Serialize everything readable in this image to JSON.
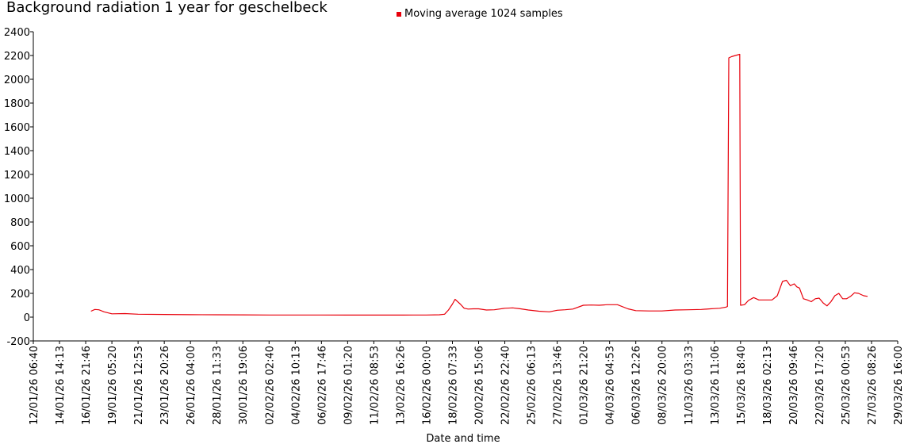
{
  "chart_data": {
    "type": "line",
    "title": "Background radiation 1 year for geschelbeck",
    "xlabel": "Date and time",
    "ylabel": "",
    "ylim": [
      -200,
      2400
    ],
    "y_ticks": [
      -200,
      0,
      200,
      400,
      600,
      800,
      1000,
      1200,
      1400,
      1600,
      1800,
      2000,
      2200,
      2400
    ],
    "x_tick_labels": [
      "12/01/26 06:40",
      "14/01/26 14:13",
      "16/01/26 21:46",
      "19/01/26 05:20",
      "21/01/26 12:53",
      "23/01/26 20:26",
      "26/01/26 04:00",
      "28/01/26 11:33",
      "30/01/26 19:06",
      "02/02/26 02:40",
      "04/02/26 10:13",
      "06/02/26 17:46",
      "09/02/26 01:20",
      "11/02/26 08:53",
      "13/02/26 16:26",
      "16/02/26 00:00",
      "18/02/26 07:33",
      "20/02/26 15:06",
      "22/02/26 22:40",
      "25/02/26 06:13",
      "27/02/26 13:46",
      "01/03/26 21:20",
      "04/03/26 04:53",
      "06/03/26 12:26",
      "08/03/26 20:00",
      "11/03/26 03:33",
      "13/03/26 11:06",
      "15/03/26 18:40",
      "18/03/26 02:13",
      "20/03/26 09:46",
      "22/03/26 17:20",
      "25/03/26 00:53",
      "27/03/26 08:26",
      "29/03/26 16:00"
    ],
    "grid": false,
    "legend_position": "top",
    "series": [
      {
        "name": "Moving average 1024 samples",
        "color": "#e8000b",
        "x_tick_index": [
          2.2,
          2.35,
          2.5,
          2.7,
          3.0,
          3.5,
          4.0,
          5.0,
          6.0,
          7.0,
          8.0,
          9.0,
          10.0,
          11.0,
          12.0,
          13.0,
          14.0,
          14.5,
          15.0,
          15.5,
          15.7,
          15.85,
          16.0,
          16.1,
          16.3,
          16.45,
          16.6,
          16.8,
          17.0,
          17.3,
          17.6,
          18.0,
          18.3,
          18.6,
          18.9,
          19.3,
          19.7,
          20.0,
          20.3,
          20.6,
          21.0,
          21.3,
          21.6,
          21.9,
          22.3,
          22.7,
          23.0,
          23.5,
          24.0,
          24.5,
          25.0,
          25.5,
          25.85,
          26.0,
          26.2,
          26.45,
          26.5,
          26.55,
          26.65,
          26.8,
          26.97,
          27.0,
          27.15,
          27.3,
          27.5,
          27.7,
          27.9,
          28.2,
          28.4,
          28.6,
          28.75,
          28.9,
          29.05,
          29.15,
          29.25,
          29.4,
          29.55,
          29.7,
          29.85,
          30.0,
          30.15,
          30.3,
          30.45,
          30.6,
          30.75,
          30.9,
          31.05,
          31.2,
          31.35,
          31.5,
          31.7,
          31.85
        ],
        "values": [
          50,
          65,
          62,
          45,
          28,
          30,
          25,
          23,
          21,
          20,
          19,
          18,
          18,
          18,
          17,
          17,
          17,
          18,
          18,
          20,
          25,
          60,
          110,
          150,
          110,
          75,
          68,
          70,
          70,
          60,
          62,
          75,
          78,
          70,
          60,
          50,
          45,
          58,
          62,
          68,
          100,
          102,
          100,
          105,
          105,
          70,
          55,
          52,
          52,
          60,
          62,
          65,
          70,
          72,
          75,
          85,
          90,
          2180,
          2190,
          2200,
          2210,
          100,
          105,
          140,
          165,
          145,
          145,
          145,
          180,
          300,
          310,
          265,
          280,
          255,
          245,
          155,
          145,
          130,
          155,
          160,
          120,
          95,
          130,
          180,
          200,
          155,
          155,
          175,
          205,
          200,
          180,
          175
        ]
      }
    ]
  }
}
